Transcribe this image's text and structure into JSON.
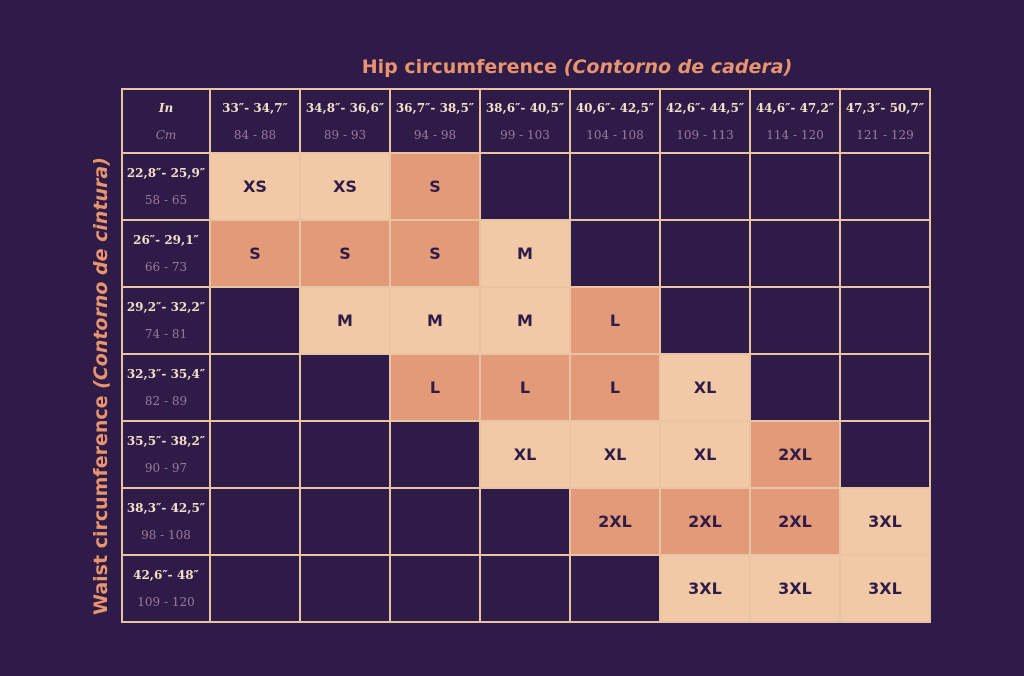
{
  "hip_title": {
    "main": "Hip circumference ",
    "sub": "(Contorno de cadera)"
  },
  "waist_title": {
    "main": "Waist circumference ",
    "sub": "(Contorno de cintura)"
  },
  "corner": {
    "in": "In",
    "cm": "Cm"
  },
  "hip_columns": [
    {
      "in": "33″- 34,7″",
      "cm": "84 - 88"
    },
    {
      "in": "34,8″- 36,6″",
      "cm": "89 - 93"
    },
    {
      "in": "36,7″- 38,5″",
      "cm": "94 - 98"
    },
    {
      "in": "38,6″- 40,5″",
      "cm": "99 - 103"
    },
    {
      "in": "40,6″- 42,5″",
      "cm": "104 - 108"
    },
    {
      "in": "42,6″- 44,5″",
      "cm": "109 - 113"
    },
    {
      "in": "44,6″- 47,2″",
      "cm": "114 - 120"
    },
    {
      "in": "47,3″- 50,7″",
      "cm": "121 - 129"
    }
  ],
  "waist_rows": [
    {
      "in": "22,8″- 25,9″",
      "cm": "58 - 65",
      "cells": [
        {
          "t": "XS",
          "s": "light"
        },
        {
          "t": "XS",
          "s": "light"
        },
        {
          "t": "S",
          "s": "dark"
        },
        null,
        null,
        null,
        null,
        null
      ]
    },
    {
      "in": "26″- 29,1″",
      "cm": "66 - 73",
      "cells": [
        {
          "t": "S",
          "s": "dark"
        },
        {
          "t": "S",
          "s": "dark"
        },
        {
          "t": "S",
          "s": "dark"
        },
        {
          "t": "M",
          "s": "light"
        },
        null,
        null,
        null,
        null
      ]
    },
    {
      "in": "29,2″- 32,2″",
      "cm": "74 - 81",
      "cells": [
        null,
        {
          "t": "M",
          "s": "light"
        },
        {
          "t": "M",
          "s": "light"
        },
        {
          "t": "M",
          "s": "light"
        },
        {
          "t": "L",
          "s": "dark"
        },
        null,
        null,
        null
      ]
    },
    {
      "in": "32,3″- 35,4″",
      "cm": "82 - 89",
      "cells": [
        null,
        null,
        {
          "t": "L",
          "s": "dark"
        },
        {
          "t": "L",
          "s": "dark"
        },
        {
          "t": "L",
          "s": "dark"
        },
        {
          "t": "XL",
          "s": "light"
        },
        null,
        null
      ]
    },
    {
      "in": "35,5″- 38,2″",
      "cm": "90 - 97",
      "cells": [
        null,
        null,
        null,
        {
          "t": "XL",
          "s": "light"
        },
        {
          "t": "XL",
          "s": "light"
        },
        {
          "t": "XL",
          "s": "light"
        },
        {
          "t": "2XL",
          "s": "dark"
        },
        null
      ]
    },
    {
      "in": "38,3″- 42,5″",
      "cm": "98 - 108",
      "cells": [
        null,
        null,
        null,
        null,
        {
          "t": "2XL",
          "s": "dark"
        },
        {
          "t": "2XL",
          "s": "dark"
        },
        {
          "t": "2XL",
          "s": "dark"
        },
        {
          "t": "3XL",
          "s": "light"
        }
      ]
    },
    {
      "in": "42,6″- 48″",
      "cm": "109 - 120",
      "cells": [
        null,
        null,
        null,
        null,
        null,
        {
          "t": "3XL",
          "s": "light"
        },
        {
          "t": "3XL",
          "s": "light"
        },
        {
          "t": "3XL",
          "s": "light"
        }
      ]
    }
  ],
  "colors": {
    "background": "#2e1b47",
    "light_cell": "#f2c9a6",
    "dark_cell": "#e39a78",
    "title": "#e8956f"
  }
}
